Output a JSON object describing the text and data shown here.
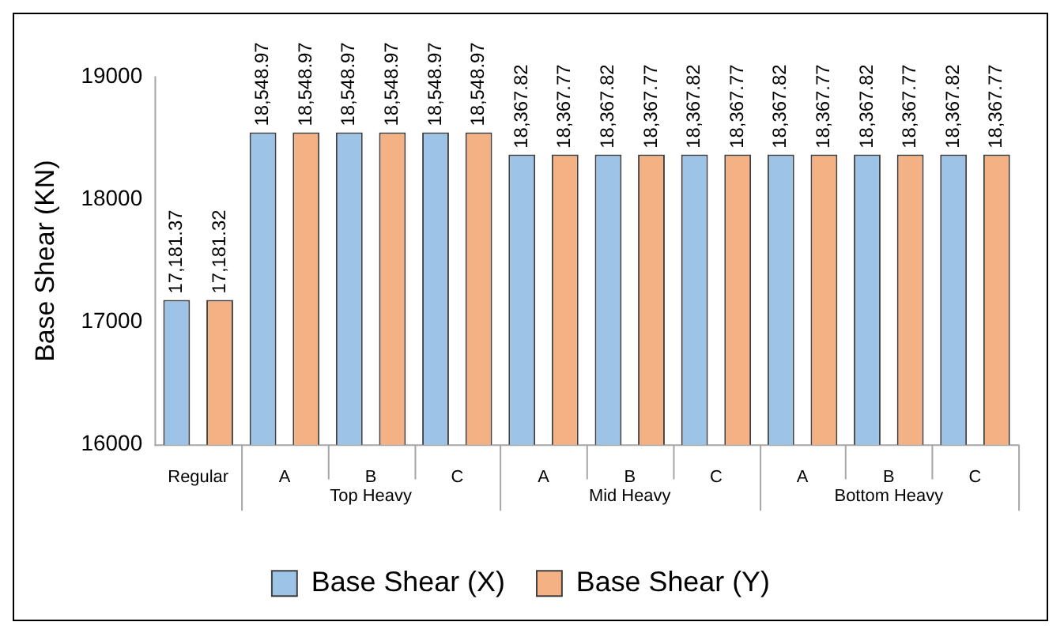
{
  "chart_data": {
    "type": "bar",
    "ylabel": "Base Shear (KN)",
    "categories": [
      "Regular",
      "A",
      "B",
      "C",
      "A",
      "B",
      "C",
      "A",
      "B",
      "C"
    ],
    "annotations": [
      "Top Heavy",
      "Mid Heavy",
      "Bottom Heavy"
    ],
    "series": [
      {
        "name": "Base Shear (X)",
        "color": "#9dc3e6",
        "values": [
          17181.37,
          18548.97,
          18548.97,
          18548.97,
          18367.82,
          18367.82,
          18367.82,
          18367.82,
          18367.82,
          18367.82
        ],
        "value_labels": [
          "17,181.37",
          "18,548.97",
          "18,548.97",
          "18,548.97",
          "18,367.82",
          "18,367.82",
          "18,367.82",
          "18,367.82",
          "18,367.82",
          "18,367.82"
        ]
      },
      {
        "name": "Base Shear (Y)",
        "color": "#f4b183",
        "values": [
          17181.32,
          18548.97,
          18548.97,
          18548.97,
          18367.77,
          18367.77,
          18367.77,
          18367.77,
          18367.77,
          18367.77
        ],
        "value_labels": [
          "17,181.32",
          "18,548.97",
          "18,548.97",
          "18,548.97",
          "18,367.77",
          "18,367.77",
          "18,367.77",
          "18,367.77",
          "18,367.77",
          "18,367.77"
        ]
      }
    ],
    "ylim": [
      16000,
      19000
    ],
    "yticks": [
      16000,
      17000,
      18000,
      19000
    ],
    "grid": false,
    "legend": "bottom"
  }
}
